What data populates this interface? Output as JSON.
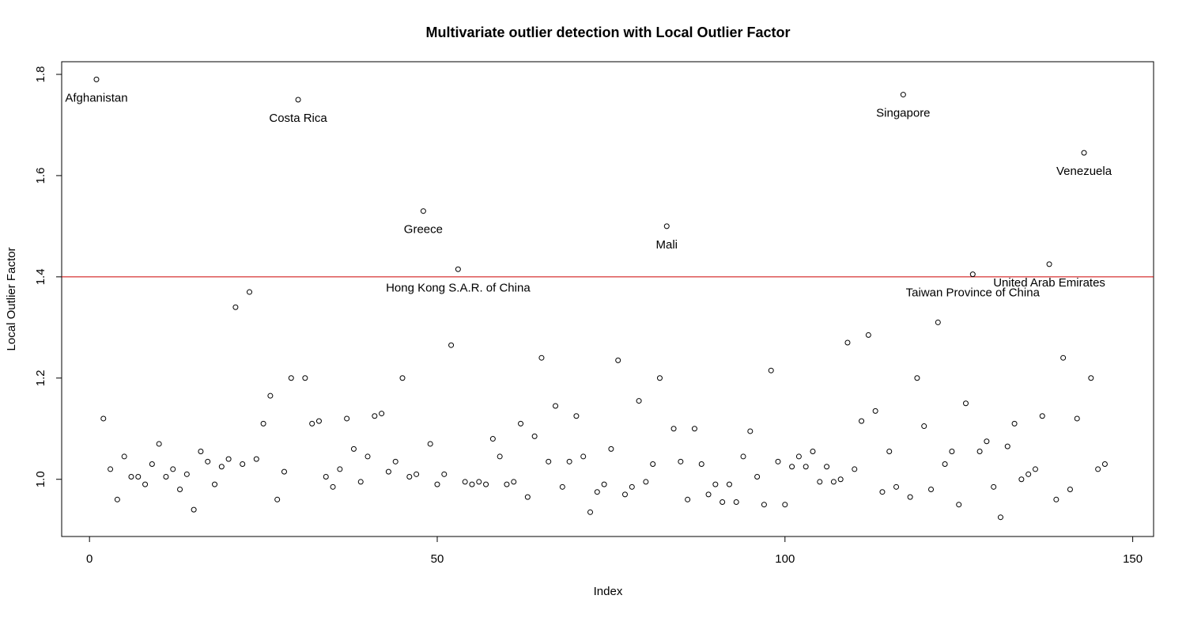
{
  "chart_data": {
    "type": "scatter",
    "title": "Multivariate outlier detection with Local Outlier Factor",
    "xlabel": "Index",
    "ylabel": "Local Outlier Factor",
    "xlim": [
      -4,
      153
    ],
    "ylim": [
      0.887,
      1.825
    ],
    "xticks": [
      0,
      50,
      100,
      150
    ],
    "yticks": [
      1.0,
      1.2,
      1.4,
      1.6,
      1.8
    ],
    "threshold": {
      "y": 1.4,
      "color": "#cc0000"
    },
    "grid": false,
    "legend": "none",
    "series": [
      {
        "x": [
          1,
          2,
          3,
          4,
          5,
          6,
          7,
          8,
          9,
          10,
          11,
          12,
          13,
          14,
          15,
          16,
          17,
          18,
          19,
          20,
          21,
          22,
          23,
          24,
          25,
          26,
          27,
          28,
          29,
          30,
          31,
          32,
          33,
          34,
          35,
          36,
          37,
          38,
          39,
          40,
          41,
          42,
          43,
          44,
          45,
          46,
          47,
          48,
          49,
          50,
          51,
          52,
          53,
          54,
          55,
          56,
          57,
          58,
          59,
          60,
          61,
          62,
          63,
          64,
          65,
          66,
          67,
          68,
          69,
          70,
          71,
          72,
          73,
          74,
          75,
          76,
          77,
          78,
          79,
          80,
          81,
          82,
          83,
          84,
          85,
          86,
          87,
          88,
          89,
          90,
          91,
          92,
          93,
          94,
          95,
          96,
          97,
          98,
          99,
          100,
          101,
          102,
          103,
          104,
          105,
          106,
          107,
          108,
          109,
          110,
          111,
          112,
          113,
          114,
          115,
          116,
          117,
          118,
          119,
          120,
          121,
          122,
          123,
          124,
          125,
          126,
          127,
          128,
          129,
          130,
          131,
          132,
          133,
          134,
          135,
          136,
          137,
          138,
          139,
          140,
          141,
          142,
          143,
          144,
          145,
          146
        ],
        "y": [
          1.79,
          1.12,
          1.02,
          0.96,
          1.045,
          1.005,
          1.005,
          0.99,
          1.03,
          1.07,
          1.005,
          1.02,
          0.98,
          1.01,
          0.94,
          1.055,
          1.035,
          0.99,
          1.025,
          1.04,
          1.34,
          1.03,
          1.37,
          1.04,
          1.11,
          1.165,
          0.96,
          1.015,
          1.2,
          1.75,
          1.2,
          1.11,
          1.115,
          1.005,
          0.985,
          1.02,
          1.12,
          1.06,
          0.995,
          1.045,
          1.125,
          1.13,
          1.015,
          1.035,
          1.2,
          1.005,
          1.01,
          1.53,
          1.07,
          0.99,
          1.01,
          1.265,
          1.415,
          0.995,
          0.99,
          0.995,
          0.99,
          1.08,
          1.045,
          0.99,
          0.995,
          1.11,
          0.965,
          1.085,
          1.24,
          1.035,
          1.145,
          0.985,
          1.035,
          1.125,
          1.045,
          0.935,
          0.975,
          0.99,
          1.06,
          1.235,
          0.97,
          0.985,
          1.155,
          0.995,
          1.03,
          1.2,
          1.5,
          1.1,
          1.035,
          0.96,
          1.1,
          1.03,
          0.97,
          0.99,
          0.955,
          0.99,
          0.955,
          1.045,
          1.095,
          1.005,
          0.95,
          1.215,
          1.035,
          0.95,
          1.025,
          1.045,
          1.025,
          1.055,
          0.995,
          1.025,
          0.995,
          1.0,
          1.27,
          1.02,
          1.115,
          1.285,
          1.135,
          0.975,
          1.055,
          0.985,
          1.76,
          0.965,
          1.2,
          1.105,
          0.98,
          1.31,
          1.03,
          1.055,
          0.95,
          1.15,
          1.405,
          1.055,
          1.075,
          0.985,
          0.925,
          1.065,
          1.11,
          1.0,
          1.01,
          1.02,
          1.125,
          1.425,
          0.96,
          1.24,
          0.98,
          1.12,
          1.645,
          1.2,
          1.02,
          1.03
        ]
      }
    ],
    "annotations": [
      {
        "index": 1,
        "label": "Afghanistan"
      },
      {
        "index": 30,
        "label": "Costa Rica"
      },
      {
        "index": 48,
        "label": "Greece"
      },
      {
        "index": 53,
        "label": "Hong Kong S.A.R. of China"
      },
      {
        "index": 83,
        "label": "Mali"
      },
      {
        "index": 117,
        "label": "Singapore"
      },
      {
        "index": 127,
        "label": "Taiwan Province of China"
      },
      {
        "index": 138,
        "label": "United Arab Emirates"
      },
      {
        "index": 143,
        "label": "Venezuela"
      }
    ]
  }
}
